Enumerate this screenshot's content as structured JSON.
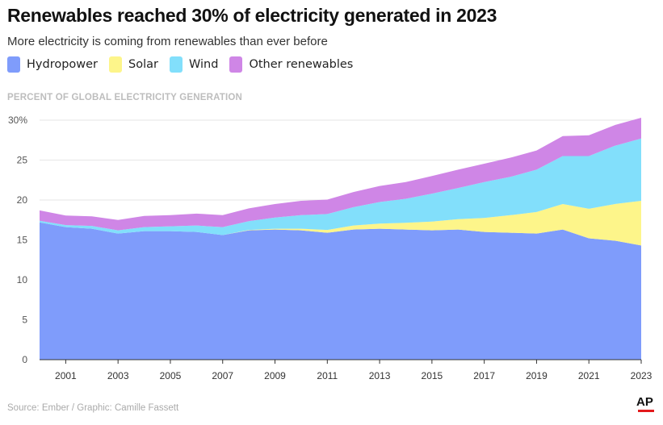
{
  "header": {
    "title": "Renewables reached 30% of electricity generated in 2023",
    "subtitle": "More electricity is coming from renewables than ever before"
  },
  "legend": [
    {
      "label": "Hydropower",
      "color": "#7f9cfb"
    },
    {
      "label": "Solar",
      "color": "#fdf58a"
    },
    {
      "label": "Wind",
      "color": "#82dffb"
    },
    {
      "label": "Other renewables",
      "color": "#cf86e6"
    }
  ],
  "footer": {
    "source": "Source: Ember / Graphic: Camille Fassett",
    "logo": "AP",
    "logo_accent": "#e31a1c"
  },
  "chart_data": {
    "type": "area",
    "stacked": true,
    "ylabel": "PERCENT OF GLOBAL ELECTRICITY GENERATION",
    "xlabel": "",
    "x": [
      2000,
      2001,
      2002,
      2003,
      2004,
      2005,
      2006,
      2007,
      2008,
      2009,
      2010,
      2011,
      2012,
      2013,
      2014,
      2015,
      2016,
      2017,
      2018,
      2019,
      2020,
      2021,
      2022,
      2023
    ],
    "x_tick_labels": [
      "2001",
      "2003",
      "2005",
      "2007",
      "2009",
      "2011",
      "2013",
      "2015",
      "2017",
      "2019",
      "2021",
      "2023"
    ],
    "y_tick_labels": [
      "30%",
      "25",
      "20",
      "15",
      "10",
      "5",
      "0"
    ],
    "ylim": [
      0,
      30
    ],
    "grid": "horizontal",
    "legend_position": "top-left",
    "series": [
      {
        "name": "Hydropower",
        "color": "#7f9cfb",
        "values": [
          17.2,
          16.6,
          16.4,
          15.8,
          16.1,
          16.1,
          16.0,
          15.6,
          16.2,
          16.3,
          16.2,
          15.9,
          16.3,
          16.4,
          16.3,
          16.2,
          16.3,
          16.0,
          15.9,
          15.8,
          16.3,
          15.2,
          14.9,
          14.3
        ]
      },
      {
        "name": "Solar",
        "color": "#fdf58a",
        "values": [
          0.0,
          0.0,
          0.0,
          0.0,
          0.0,
          0.0,
          0.0,
          0.0,
          0.05,
          0.1,
          0.2,
          0.35,
          0.5,
          0.65,
          0.85,
          1.1,
          1.3,
          1.75,
          2.2,
          2.7,
          3.2,
          3.7,
          4.6,
          5.6
        ]
      },
      {
        "name": "Wind",
        "color": "#82dffb",
        "values": [
          0.2,
          0.25,
          0.35,
          0.4,
          0.5,
          0.6,
          0.8,
          1.0,
          1.1,
          1.4,
          1.7,
          2.0,
          2.3,
          2.7,
          3.0,
          3.5,
          3.9,
          4.5,
          4.8,
          5.3,
          6.0,
          6.6,
          7.3,
          7.8
        ]
      },
      {
        "name": "Other renewables",
        "color": "#cf86e6",
        "values": [
          1.3,
          1.2,
          1.2,
          1.3,
          1.4,
          1.4,
          1.5,
          1.5,
          1.6,
          1.7,
          1.8,
          1.8,
          1.9,
          2.0,
          2.1,
          2.2,
          2.3,
          2.3,
          2.4,
          2.4,
          2.5,
          2.6,
          2.6,
          2.6
        ]
      }
    ]
  }
}
